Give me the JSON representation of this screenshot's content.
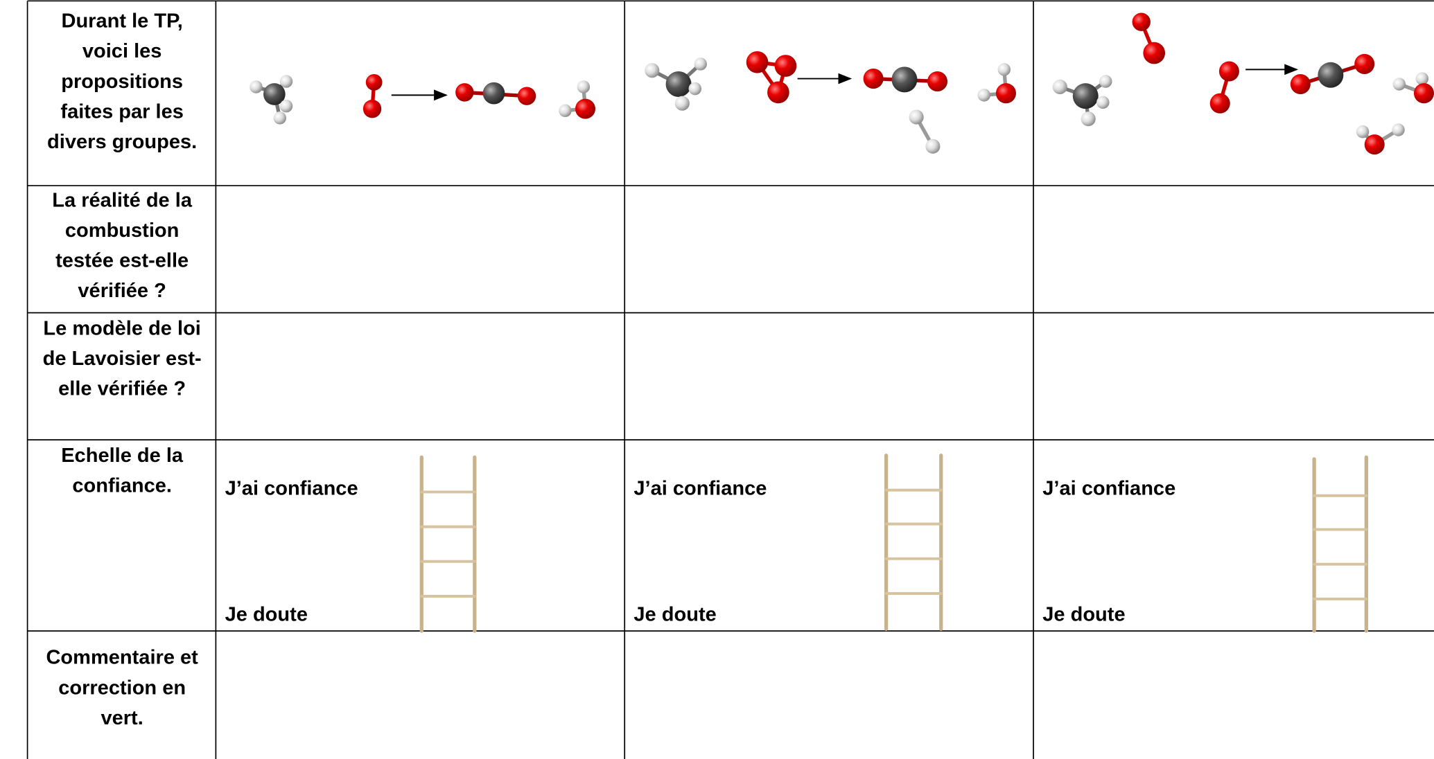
{
  "table": {
    "rows": [
      {
        "lines": [
          "Durant le TP,",
          "voici les",
          "propositions",
          "faites par les",
          "divers groupes."
        ]
      },
      {
        "lines": [
          "La réalité de la",
          "combustion",
          "testée est-elle",
          "vérifiée ?"
        ]
      },
      {
        "lines": [
          "Le modèle de loi",
          "de Lavoisier est-",
          "elle vérifiée ?"
        ]
      },
      {
        "lines": [
          "Echelle de la",
          "confiance."
        ]
      },
      {
        "lines": [
          "Commentaire et",
          "correction en",
          "vert."
        ]
      }
    ],
    "confidence": [
      {
        "high": "J’ai confiance",
        "low": "Je doute"
      },
      {
        "high": "J’ai confiance",
        "low": "Je doute"
      },
      {
        "high": "J’ai confiance",
        "low": "Je doute"
      }
    ]
  }
}
